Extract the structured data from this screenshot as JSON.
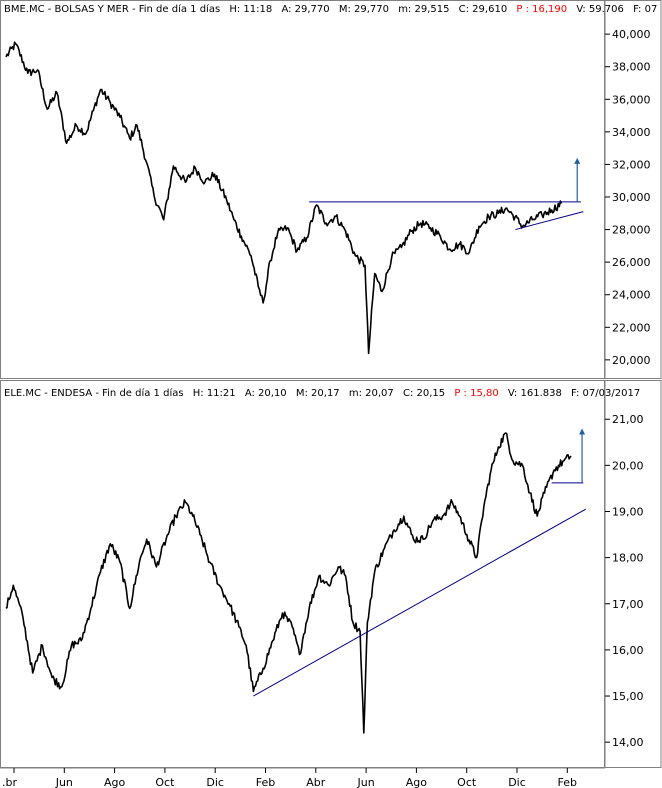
{
  "colors": {
    "price": "#000000",
    "trendline": "#00008b",
    "target_arrow": "#1f5fa8",
    "header_bg": "#ffffff",
    "highlight": "#ff0000"
  },
  "chart_data": [
    {
      "type": "line",
      "header": {
        "ticker": "BME.MC - BOLSAS Y MER - Fin de día 1 días",
        "H": "H: 11:18",
        "A": "A: 29,770",
        "M": "M: 29,770",
        "m": "m: 29,515",
        "C": "C: 29,610",
        "P": "P : 16,190",
        "V": "V: 59.706",
        "F": "F: 07"
      },
      "ylim": [
        19.5,
        40.5
      ],
      "ytick_values": [
        20,
        22,
        24,
        26,
        28,
        30,
        32,
        34,
        36,
        38,
        40
      ],
      "ytick_labels": [
        "20,000",
        "22,000",
        "24,000",
        "26,000",
        "28,000",
        "30,000",
        "32,000",
        "34,000",
        "36,000",
        "38,000",
        "40,000"
      ],
      "x_range": [
        0,
        23.5
      ],
      "anchors": [
        [
          0.0,
          38.6
        ],
        [
          0.4,
          39.4
        ],
        [
          0.9,
          37.6
        ],
        [
          1.3,
          37.8
        ],
        [
          1.7,
          35.4
        ],
        [
          2.1,
          36.4
        ],
        [
          2.5,
          33.3
        ],
        [
          2.9,
          34.4
        ],
        [
          3.3,
          33.9
        ],
        [
          3.6,
          35.3
        ],
        [
          3.9,
          36.6
        ],
        [
          4.3,
          35.8
        ],
        [
          4.7,
          34.9
        ],
        [
          5.1,
          33.6
        ],
        [
          5.4,
          34.4
        ],
        [
          5.8,
          32.1
        ],
        [
          6.1,
          30.1
        ],
        [
          6.5,
          28.6
        ],
        [
          6.9,
          31.9
        ],
        [
          7.4,
          30.9
        ],
        [
          7.8,
          31.8
        ],
        [
          8.2,
          30.9
        ],
        [
          8.6,
          31.4
        ],
        [
          9.1,
          29.8
        ],
        [
          9.4,
          28.6
        ],
        [
          9.7,
          27.6
        ],
        [
          10.1,
          26.4
        ],
        [
          10.4,
          24.5
        ],
        [
          10.6,
          23.5
        ],
        [
          10.9,
          26.1
        ],
        [
          11.2,
          27.8
        ],
        [
          11.6,
          28.1
        ],
        [
          12.0,
          26.7
        ],
        [
          12.4,
          27.5
        ],
        [
          12.8,
          29.5
        ],
        [
          13.2,
          28.4
        ],
        [
          13.6,
          28.8
        ],
        [
          14.0,
          27.9
        ],
        [
          14.4,
          26.4
        ],
        [
          14.8,
          25.8
        ],
        [
          14.95,
          20.4
        ],
        [
          15.2,
          25.3
        ],
        [
          15.5,
          24.2
        ],
        [
          15.9,
          26.3
        ],
        [
          16.3,
          26.9
        ],
        [
          16.7,
          27.9
        ],
        [
          17.1,
          28.4
        ],
        [
          17.5,
          28.1
        ],
        [
          17.9,
          27.6
        ],
        [
          18.3,
          26.8
        ],
        [
          18.7,
          27.1
        ],
        [
          19.1,
          26.6
        ],
        [
          19.5,
          28.2
        ],
        [
          19.9,
          28.8
        ],
        [
          20.3,
          29.0
        ],
        [
          20.6,
          29.3
        ],
        [
          20.9,
          28.9
        ],
        [
          21.3,
          28.2
        ],
        [
          21.7,
          28.6
        ],
        [
          22.1,
          28.9
        ],
        [
          22.5,
          29.2
        ],
        [
          22.9,
          29.6
        ]
      ],
      "resistance": [
        [
          12.5,
          29.7
        ],
        [
          23.7,
          29.7
        ]
      ],
      "support": [
        [
          21.0,
          28.0
        ],
        [
          23.8,
          29.1
        ]
      ],
      "target_arrow": [
        [
          23.55,
          29.7
        ],
        [
          23.55,
          32.4
        ]
      ]
    },
    {
      "type": "line",
      "header": {
        "ticker": "ELE.MC - ENDESA - Fin de día 1 días",
        "H": "H: 11:21",
        "A": "A: 20,10",
        "M": "M: 20,17",
        "m": "m: 20,07",
        "C": "C: 20,15",
        "P": "P : 15,80",
        "V": "V: 161.838",
        "F": "F: 07/03/2017"
      },
      "ylim": [
        13.7,
        21.2
      ],
      "ytick_values": [
        14,
        15,
        16,
        17,
        18,
        19,
        20,
        21
      ],
      "ytick_labels": [
        "14,00",
        "15,00",
        "16,00",
        "17,00",
        "18,00",
        "19,00",
        "20,00",
        "21,00"
      ],
      "x_range": [
        0,
        23.5
      ],
      "anchors": [
        [
          0.0,
          16.9
        ],
        [
          0.3,
          17.4
        ],
        [
          0.7,
          16.7
        ],
        [
          1.1,
          15.5
        ],
        [
          1.5,
          16.1
        ],
        [
          1.9,
          15.4
        ],
        [
          2.3,
          15.2
        ],
        [
          2.7,
          16.1
        ],
        [
          3.1,
          16.2
        ],
        [
          3.5,
          16.9
        ],
        [
          3.9,
          17.7
        ],
        [
          4.3,
          18.3
        ],
        [
          4.7,
          17.9
        ],
        [
          5.1,
          16.9
        ],
        [
          5.5,
          17.9
        ],
        [
          5.8,
          18.4
        ],
        [
          6.2,
          17.8
        ],
        [
          6.6,
          18.4
        ],
        [
          7.0,
          18.9
        ],
        [
          7.4,
          19.2
        ],
        [
          7.7,
          18.9
        ],
        [
          8.0,
          18.5
        ],
        [
          8.4,
          17.9
        ],
        [
          8.8,
          17.4
        ],
        [
          9.2,
          17.0
        ],
        [
          9.6,
          16.5
        ],
        [
          9.9,
          16.1
        ],
        [
          10.2,
          15.1
        ],
        [
          10.6,
          15.6
        ],
        [
          11.0,
          16.2
        ],
        [
          11.4,
          16.8
        ],
        [
          11.8,
          16.5
        ],
        [
          12.1,
          15.9
        ],
        [
          12.5,
          16.9
        ],
        [
          12.9,
          17.6
        ],
        [
          13.3,
          17.4
        ],
        [
          13.7,
          17.8
        ],
        [
          14.0,
          17.6
        ],
        [
          14.3,
          16.6
        ],
        [
          14.6,
          16.4
        ],
        [
          14.75,
          14.2
        ],
        [
          14.9,
          16.6
        ],
        [
          15.2,
          17.7
        ],
        [
          15.6,
          18.2
        ],
        [
          16.0,
          18.6
        ],
        [
          16.4,
          18.9
        ],
        [
          16.8,
          18.4
        ],
        [
          17.2,
          18.4
        ],
        [
          17.6,
          18.8
        ],
        [
          18.0,
          18.9
        ],
        [
          18.4,
          19.2
        ],
        [
          18.7,
          18.9
        ],
        [
          19.0,
          18.5
        ],
        [
          19.4,
          18.0
        ],
        [
          19.7,
          19.1
        ],
        [
          20.0,
          19.9
        ],
        [
          20.3,
          20.4
        ],
        [
          20.6,
          20.7
        ],
        [
          20.9,
          20.1
        ],
        [
          21.3,
          20.0
        ],
        [
          21.6,
          19.4
        ],
        [
          21.9,
          18.9
        ],
        [
          22.2,
          19.4
        ],
        [
          22.6,
          19.9
        ],
        [
          23.0,
          20.1
        ],
        [
          23.3,
          20.2
        ]
      ],
      "support": [
        [
          10.2,
          15.0
        ],
        [
          23.9,
          19.05
        ]
      ],
      "resistance": [
        [
          22.5,
          19.62
        ],
        [
          23.8,
          19.62
        ]
      ],
      "target_arrow": [
        [
          23.75,
          19.62
        ],
        [
          23.75,
          20.8
        ]
      ]
    }
  ],
  "x_axis": {
    "labels": [
      ".br",
      "Jun",
      "Ago",
      "Oct",
      "Dic",
      "Feb",
      "Abr",
      "Jun",
      "Ago",
      "Oct",
      "Dic",
      "Feb"
    ],
    "positions": [
      0,
      2,
      4,
      6,
      8,
      10,
      12,
      14,
      16,
      18,
      20,
      22
    ]
  }
}
